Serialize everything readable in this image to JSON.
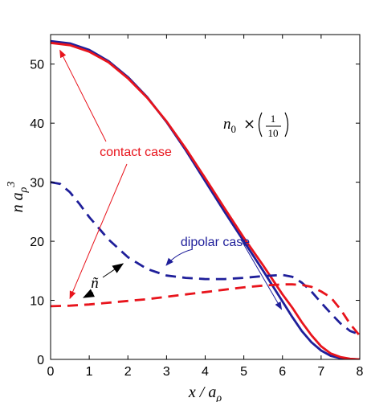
{
  "chart_data": {
    "type": "line",
    "xlabel": "x / a_ρ",
    "ylabel": "n a_ρ^3",
    "xlim": [
      0,
      8
    ],
    "ylim": [
      0,
      55
    ],
    "xticks": [
      0,
      1,
      2,
      3,
      4,
      5,
      6,
      7,
      8
    ],
    "yticks": [
      0,
      10,
      20,
      30,
      40,
      50
    ],
    "grid": false,
    "legend": "none",
    "colors": {
      "dipolar": "#1f1f9a",
      "contact": "#e8141c"
    },
    "series": [
      {
        "style": "solid",
        "color_key": "dipolar",
        "x": [
          0,
          0.5,
          1,
          1.5,
          2,
          2.5,
          3,
          3.5,
          4,
          4.5,
          5,
          5.5,
          6,
          6.25,
          6.5,
          6.75,
          7,
          7.25,
          7.5,
          7.75,
          8
        ],
        "y": [
          53.9,
          53.5,
          52.4,
          50.5,
          47.8,
          44.4,
          40.2,
          35.4,
          30.2,
          25.0,
          20.0,
          15.0,
          9.8,
          7.2,
          4.8,
          2.9,
          1.5,
          0.6,
          0.2,
          0.05,
          0.0
        ]
      },
      {
        "style": "solid",
        "color_key": "contact",
        "x": [
          0,
          0.5,
          1,
          1.5,
          2,
          2.5,
          3,
          3.5,
          4,
          4.5,
          5,
          5.5,
          6,
          6.25,
          6.5,
          6.75,
          7,
          7.25,
          7.5,
          7.75,
          8
        ],
        "y": [
          53.6,
          53.2,
          52.1,
          50.3,
          47.6,
          44.3,
          40.3,
          35.7,
          30.7,
          25.6,
          20.6,
          15.9,
          11.0,
          8.8,
          6.3,
          4.1,
          2.2,
          1.0,
          0.4,
          0.1,
          0.0
        ]
      },
      {
        "style": "dashed",
        "color_key": "dipolar",
        "x": [
          0,
          0.25,
          0.5,
          0.75,
          1,
          1.5,
          2,
          2.5,
          3,
          3.5,
          4,
          4.5,
          5,
          5.5,
          6,
          6.25,
          6.5,
          6.75,
          7,
          7.25,
          7.5,
          7.75,
          8
        ],
        "y": [
          30.0,
          29.7,
          28.3,
          26.3,
          24.1,
          20.3,
          17.3,
          15.3,
          14.2,
          13.8,
          13.6,
          13.6,
          13.8,
          14.1,
          14.3,
          14.0,
          13.0,
          11.5,
          9.6,
          7.8,
          6.1,
          4.8,
          4.2
        ]
      },
      {
        "style": "dashed",
        "color_key": "contact",
        "x": [
          0,
          0.5,
          1,
          1.5,
          2,
          2.5,
          3,
          3.5,
          4,
          4.5,
          5,
          5.5,
          6,
          6.25,
          6.5,
          6.75,
          7,
          7.25,
          7.5,
          7.75,
          8
        ],
        "y": [
          9.0,
          9.1,
          9.3,
          9.6,
          9.9,
          10.2,
          10.6,
          11.0,
          11.4,
          11.8,
          12.2,
          12.5,
          12.7,
          12.7,
          12.6,
          12.3,
          11.5,
          10.5,
          8.5,
          6.0,
          4.0
        ]
      }
    ],
    "annotations": {
      "contact": "contact case",
      "dipolar": "dipolar case",
      "ntilde": "ñ",
      "scale_prefix": "n",
      "scale_sub": "0",
      "scale_times": "×",
      "scale_num": "1",
      "scale_den": "10"
    }
  }
}
